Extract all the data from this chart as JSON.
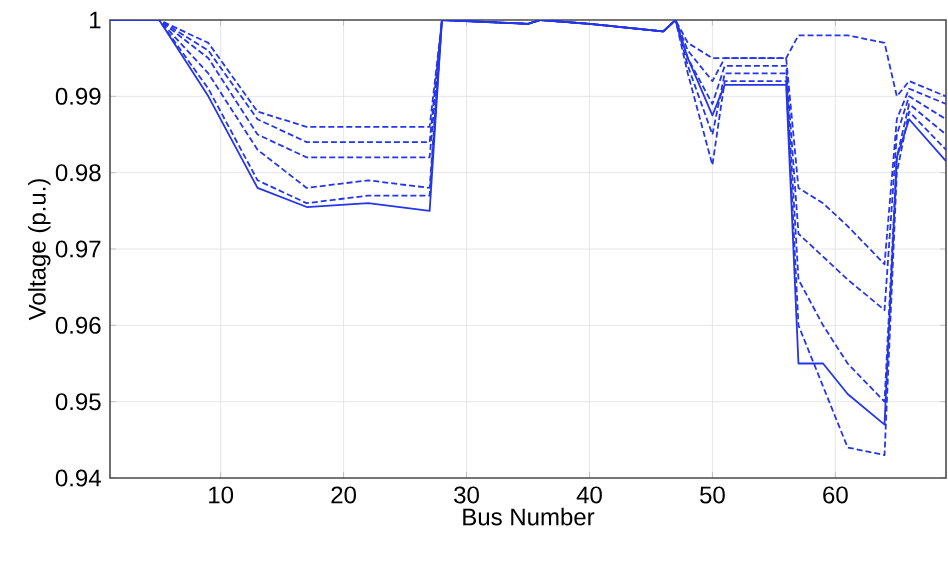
{
  "chart_data": {
    "type": "line",
    "xlabel": "Bus Number",
    "ylabel": "Voltage (p.u.)",
    "xlim": [
      1,
      69
    ],
    "ylim": [
      0.94,
      1
    ],
    "xticks": [
      10,
      20,
      30,
      40,
      50,
      60
    ],
    "yticks": [
      0.94,
      0.95,
      0.96,
      0.97,
      0.98,
      0.99,
      1
    ],
    "grid": true,
    "marker": "none",
    "x": [
      1,
      5,
      9,
      13,
      17,
      22,
      27,
      28,
      35,
      36,
      40,
      46,
      47,
      48,
      50,
      51,
      56,
      57,
      59,
      61,
      64,
      65,
      66,
      69
    ],
    "series": [
      {
        "color": "#2436e8",
        "line_style": "solid",
        "values": [
          1,
          1,
          0.99,
          0.978,
          0.9755,
          0.976,
          0.975,
          1,
          0.9995,
          1,
          0.9995,
          0.9985,
          1,
          0.995,
          0.9875,
          0.9915,
          0.9915,
          0.955,
          0.955,
          0.951,
          0.947,
          0.982,
          0.987,
          0.9815
        ]
      },
      {
        "color": "#2436e8",
        "line_style": "dashed",
        "values": [
          1,
          1,
          0.991,
          0.979,
          0.976,
          0.977,
          0.977,
          1,
          0.9995,
          1,
          0.9995,
          0.9985,
          1,
          0.993,
          0.981,
          0.992,
          0.992,
          0.96,
          0.952,
          0.944,
          0.943,
          0.98,
          0.988,
          0.983
        ]
      },
      {
        "color": "#2436e8",
        "line_style": "dashed",
        "values": [
          1,
          1,
          0.993,
          0.983,
          0.978,
          0.979,
          0.978,
          1,
          0.9995,
          1,
          0.9995,
          0.9985,
          1,
          0.994,
          0.985,
          0.993,
          0.993,
          0.966,
          0.96,
          0.955,
          0.95,
          0.982,
          0.989,
          0.985
        ]
      },
      {
        "color": "#2436e8",
        "line_style": "dashed",
        "values": [
          1,
          1,
          0.995,
          0.985,
          0.982,
          0.982,
          0.982,
          1,
          0.9995,
          1,
          0.9995,
          0.9985,
          1,
          0.995,
          0.989,
          0.994,
          0.994,
          0.972,
          0.969,
          0.966,
          0.962,
          0.985,
          0.99,
          0.987
        ]
      },
      {
        "color": "#2436e8",
        "line_style": "dashed",
        "values": [
          1,
          1,
          0.996,
          0.987,
          0.984,
          0.984,
          0.984,
          1,
          0.9995,
          1,
          0.9995,
          0.9985,
          1,
          0.996,
          0.992,
          0.995,
          0.995,
          0.978,
          0.976,
          0.973,
          0.968,
          0.987,
          0.991,
          0.989
        ]
      },
      {
        "color": "#2436e8",
        "line_style": "dashed",
        "values": [
          1,
          1,
          0.997,
          0.988,
          0.986,
          0.986,
          0.986,
          1,
          0.9995,
          1,
          0.9995,
          0.9985,
          1,
          0.997,
          0.995,
          0.995,
          0.995,
          0.998,
          0.998,
          0.998,
          0.997,
          0.99,
          0.992,
          0.99
        ]
      }
    ]
  }
}
